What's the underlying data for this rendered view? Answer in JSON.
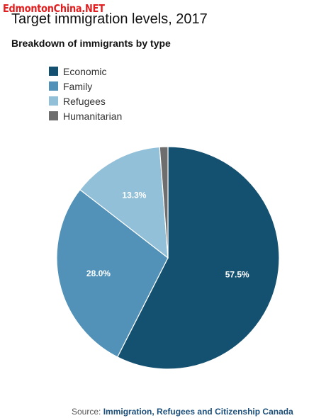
{
  "watermark": "EdmontonChina.NET",
  "title": "Target immigration levels, 2017",
  "subtitle": "Breakdown of immigrants by type",
  "chart_data": {
    "type": "pie",
    "categories": [
      "Economic",
      "Family",
      "Refugees",
      "Humanitarian"
    ],
    "values": [
      57.5,
      28.0,
      13.3,
      1.2
    ],
    "labels": [
      "57.5%",
      "28.0%",
      "13.3%",
      ""
    ],
    "colors": [
      "#14506f",
      "#5392b8",
      "#93c0d9",
      "#6e6e6e"
    ],
    "legend": "top-left"
  },
  "source": {
    "prefix": "Source:",
    "link_text": "Immigration, Refugees and Citizenship Canada"
  }
}
